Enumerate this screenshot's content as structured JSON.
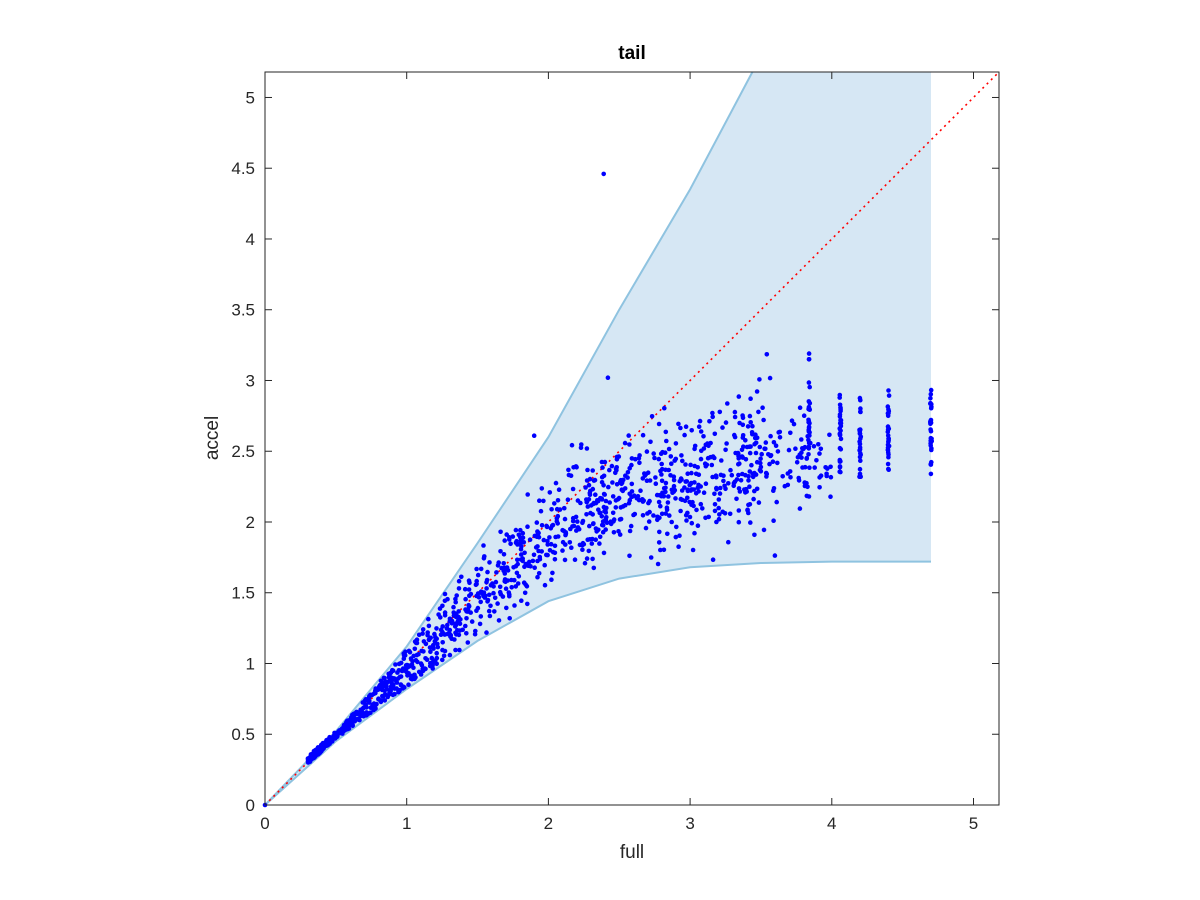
{
  "chart_data": {
    "type": "scatter",
    "title": "tail",
    "xlabel": "full",
    "ylabel": "accel",
    "xlim": [
      0,
      5.18
    ],
    "ylim": [
      0,
      5.18
    ],
    "xticks": [
      0,
      1,
      2,
      3,
      4,
      5
    ],
    "yticks": [
      0,
      0.5,
      1,
      1.5,
      2,
      2.5,
      3,
      3.5,
      4,
      4.5,
      5
    ],
    "xtick_labels": [
      "0",
      "1",
      "2",
      "3",
      "4",
      "5"
    ],
    "ytick_labels": [
      "0",
      "0.5",
      "1",
      "1.5",
      "2",
      "2.5",
      "3",
      "3.5",
      "4",
      "4.5",
      "5"
    ],
    "grid": false,
    "colors": {
      "points": "#0000ff",
      "band_fill": "#d6e7f4",
      "band_edge": "#8fc3e0",
      "reference_line": "#ff0000"
    },
    "reference_line": {
      "style": "dotted",
      "x": [
        0,
        5.18
      ],
      "y": [
        0,
        5.18
      ]
    },
    "band": {
      "x_max": 4.7,
      "upper": [
        [
          0,
          0
        ],
        [
          0.5,
          0.52
        ],
        [
          1,
          1.12
        ],
        [
          1.5,
          1.85
        ],
        [
          2,
          2.6
        ],
        [
          2.5,
          3.5
        ],
        [
          3,
          4.35
        ],
        [
          3.44,
          5.18
        ],
        [
          4.7,
          5.18
        ]
      ],
      "lower": [
        [
          0,
          0
        ],
        [
          0.5,
          0.45
        ],
        [
          1,
          0.82
        ],
        [
          1.5,
          1.16
        ],
        [
          2,
          1.44
        ],
        [
          2.5,
          1.6
        ],
        [
          3,
          1.68
        ],
        [
          3.5,
          1.71
        ],
        [
          4,
          1.72
        ],
        [
          4.7,
          1.72
        ]
      ]
    },
    "outliers": [
      {
        "x": 2.39,
        "y": 4.46
      },
      {
        "x": 2.42,
        "y": 3.02
      },
      {
        "x": 1.9,
        "y": 2.61
      },
      {
        "x": 3.84,
        "y": 3.19
      }
    ],
    "columns": [
      {
        "x": 3.84,
        "y_min": 2.18,
        "y_max": 3.15
      },
      {
        "x": 4.06,
        "y_min": 2.33,
        "y_max": 2.95
      },
      {
        "x": 4.2,
        "y_min": 2.32,
        "y_max": 2.92
      },
      {
        "x": 4.4,
        "y_min": 2.33,
        "y_max": 2.93
      },
      {
        "x": 4.7,
        "y_min": 2.34,
        "y_max": 3.0
      }
    ],
    "trend": [
      [
        0.3,
        0.3
      ],
      [
        0.6,
        0.58
      ],
      [
        1,
        0.95
      ],
      [
        1.5,
        1.45
      ],
      [
        2,
        1.92
      ],
      [
        2.5,
        2.18
      ],
      [
        3,
        2.32
      ],
      [
        3.5,
        2.44
      ],
      [
        3.9,
        2.52
      ]
    ],
    "point_count": 1200
  }
}
